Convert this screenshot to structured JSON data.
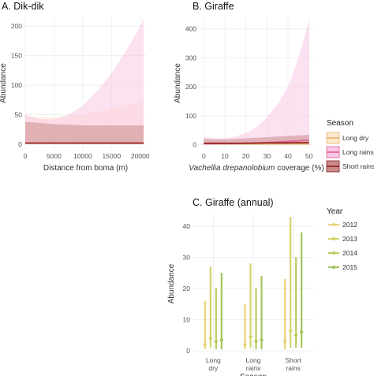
{
  "chart_data": [
    {
      "type": "line",
      "panel": "A",
      "title": "A. Dik-dik",
      "xlabel": "Distance from boma (m)",
      "ylabel": "Abundance",
      "xlim": [
        0,
        21000
      ],
      "ylim": [
        -8,
        215
      ],
      "xticks": [
        0,
        5000,
        10000,
        15000,
        20000
      ],
      "xtick_labels": [
        "0",
        "5000",
        "10000",
        "15000",
        "20000"
      ],
      "yticks": [
        0,
        50,
        100,
        150,
        200
      ],
      "ytick_labels": [
        "0",
        "50",
        "100",
        "150",
        "200"
      ],
      "grid": true,
      "series": [
        {
          "name": "Long dry",
          "color": "#e8b070",
          "fill": "#fde8cc",
          "x": [
            0,
            2500,
            5000,
            7500,
            10000,
            12500,
            15000,
            17500,
            20000,
            20600
          ],
          "y": [
            1.5,
            1.5,
            1.5,
            1.5,
            1.4,
            1.4,
            1.4,
            1.4,
            1.4,
            1.4
          ],
          "lower": [
            0.5,
            0.5,
            0.5,
            0.5,
            0.4,
            0.4,
            0.4,
            0.3,
            0.3,
            0.3
          ],
          "upper": [
            47,
            46,
            46,
            48,
            51,
            55,
            60,
            66,
            72,
            74
          ]
        },
        {
          "name": "Long rains",
          "color": "#e0608c",
          "fill": "#f9c8e6",
          "x": [
            0,
            2500,
            5000,
            7500,
            10000,
            12500,
            15000,
            17500,
            20000,
            20600
          ],
          "y": [
            2,
            2,
            2,
            2,
            2,
            2,
            2,
            2,
            2,
            2
          ],
          "lower": [
            0.5,
            0.5,
            0.5,
            0.5,
            0.5,
            0.4,
            0.4,
            0.4,
            0.3,
            0.3
          ],
          "upper": [
            50,
            43,
            42,
            50,
            65,
            90,
            120,
            158,
            200,
            212
          ]
        },
        {
          "name": "Short rains",
          "color": "#8b1a1a",
          "fill": "#c98c8c",
          "x": [
            0,
            2500,
            5000,
            7500,
            10000,
            12500,
            15000,
            17500,
            20000,
            20600
          ],
          "y": [
            2,
            2,
            2,
            2,
            2,
            2,
            2,
            2,
            2,
            2
          ],
          "lower": [
            0.5,
            0.5,
            0.5,
            0.5,
            0.5,
            0.5,
            0.5,
            0.5,
            0.5,
            0.5
          ],
          "upper": [
            38,
            36,
            34,
            33,
            32,
            32,
            32,
            32,
            32,
            32
          ]
        }
      ]
    },
    {
      "type": "line",
      "panel": "B",
      "title": "B. Giraffe",
      "xlabel": "Vachellia drepanolobium coverage (%)",
      "ylabel": "Abundance",
      "xlim": [
        -2,
        52
      ],
      "ylim": [
        -15,
        440
      ],
      "xticks": [
        0,
        10,
        20,
        30,
        40,
        50
      ],
      "xtick_labels": [
        "0",
        "10",
        "20",
        "30",
        "40",
        "50"
      ],
      "yticks": [
        0,
        100,
        200,
        300,
        400
      ],
      "ytick_labels": [
        "0",
        "100",
        "200",
        "300",
        "400"
      ],
      "grid": true,
      "series": [
        {
          "name": "Long dry",
          "color": "#e8b070",
          "fill": "#fde8cc",
          "x": [
            0,
            10,
            20,
            30,
            40,
            50
          ],
          "y": [
            3,
            2,
            2,
            2,
            2,
            2
          ],
          "lower": [
            1,
            0.5,
            0.3,
            0.3,
            0.3,
            0.3
          ],
          "upper": [
            10,
            8,
            9,
            11,
            14,
            18
          ]
        },
        {
          "name": "Long rains",
          "color": "#e0608c",
          "fill": "#f9c8e6",
          "x": [
            0,
            5,
            10,
            15,
            20,
            25,
            30,
            35,
            40,
            45,
            50
          ],
          "y": [
            3,
            3,
            4,
            4,
            5,
            6,
            7,
            9,
            11,
            13,
            16
          ],
          "lower": [
            1,
            1,
            1,
            1,
            1,
            1,
            1,
            1,
            1,
            1,
            1
          ],
          "upper": [
            28,
            22,
            22,
            28,
            40,
            60,
            95,
            140,
            200,
            300,
            430
          ]
        },
        {
          "name": "Short rains",
          "color": "#8b1a1a",
          "fill": "#c98c8c",
          "x": [
            0,
            10,
            20,
            30,
            40,
            50
          ],
          "y": [
            5,
            5,
            5,
            6,
            6,
            7
          ],
          "lower": [
            2,
            2,
            2,
            2,
            2,
            2
          ],
          "upper": [
            20,
            18,
            22,
            26,
            30,
            34
          ]
        }
      ]
    },
    {
      "type": "scatter",
      "panel": "C",
      "title": "C. Giraffe (annual)",
      "xlabel": "Season",
      "ylabel": "Abundance",
      "ylim": [
        -1,
        44
      ],
      "yticks": [
        0,
        10,
        20,
        30,
        40
      ],
      "ytick_labels": [
        "0",
        "10",
        "20",
        "30",
        "40"
      ],
      "categories": [
        [
          "Long",
          "dry"
        ],
        [
          "Long",
          "rains"
        ],
        [
          "Short",
          "rains"
        ]
      ],
      "grid": true,
      "series": [
        {
          "name": "2012",
          "color": "#e8d27a",
          "values": [
            2.0,
            2.0,
            3.0
          ],
          "lower": [
            0.5,
            0.5,
            0.5
          ],
          "upper": [
            16,
            15,
            23
          ]
        },
        {
          "name": "2013",
          "color": "#d6d36a",
          "values": [
            4.0,
            4.5,
            6.5
          ],
          "lower": [
            1,
            1,
            1
          ],
          "upper": [
            27,
            28,
            43
          ]
        },
        {
          "name": "2014",
          "color": "#b9cc63",
          "values": [
            3.0,
            3.0,
            5.0
          ],
          "lower": [
            0.5,
            0.5,
            1
          ],
          "upper": [
            20,
            20,
            30
          ]
        },
        {
          "name": "2015",
          "color": "#a3c45d",
          "values": [
            3.5,
            3.5,
            6.0
          ],
          "lower": [
            0.5,
            0.5,
            1
          ],
          "upper": [
            25,
            24,
            38
          ]
        }
      ]
    }
  ],
  "legends": {
    "season": {
      "title": "Season",
      "items": [
        {
          "label": "Long dry",
          "color": "#e8b070",
          "fill": "#fde8cc"
        },
        {
          "label": "Long rains",
          "color": "#e0608c",
          "fill": "#f9c8e6"
        },
        {
          "label": "Short rains",
          "color": "#8b1a1a",
          "fill": "#c98c8c"
        }
      ]
    },
    "year": {
      "title": "Year",
      "items": [
        {
          "label": "2012",
          "color": "#e8d27a"
        },
        {
          "label": "2013",
          "color": "#d6d36a"
        },
        {
          "label": "2014",
          "color": "#b9cc63"
        },
        {
          "label": "2015",
          "color": "#a3c45d"
        }
      ]
    }
  }
}
